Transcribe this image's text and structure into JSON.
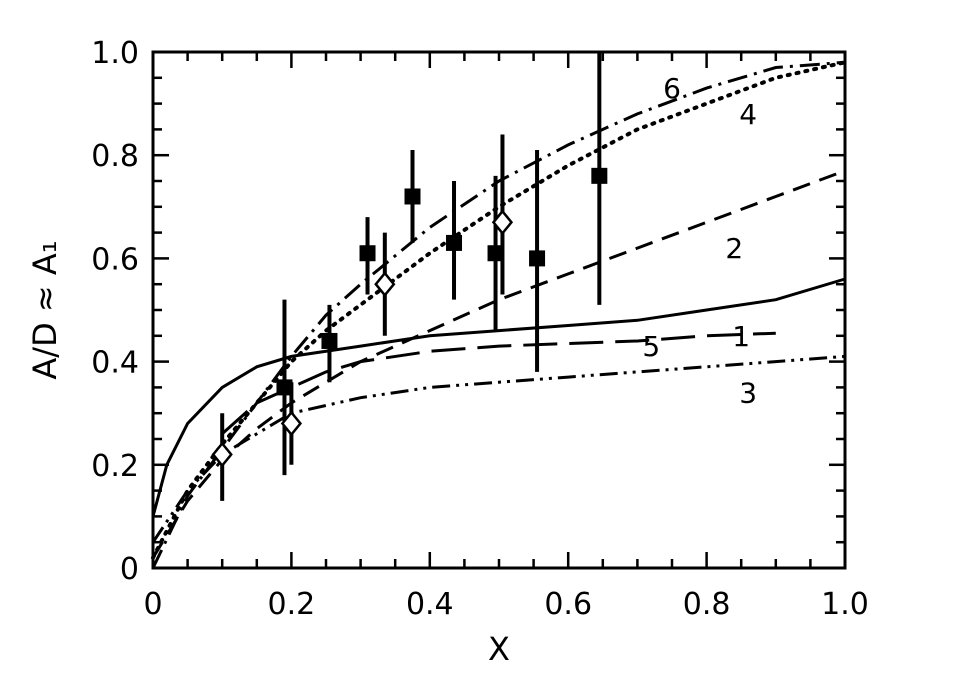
{
  "chart_data": {
    "type": "line",
    "title": "",
    "xlabel": "X",
    "ylabel": "A/D ≈ A₁",
    "xlim": [
      0,
      1.0
    ],
    "ylim": [
      0,
      1.0
    ],
    "grid": false,
    "x_ticks": [
      0,
      0.2,
      0.4,
      0.6,
      0.8,
      1.0
    ],
    "x_tick_labels": [
      "0",
      "0.2",
      "0.4",
      "0.6",
      "0.8",
      "1.0"
    ],
    "y_ticks": [
      0,
      0.2,
      0.4,
      0.6,
      0.8,
      1.0
    ],
    "y_tick_labels": [
      "0",
      "0.2",
      "0.4",
      "0.6",
      "0.8",
      "1.0"
    ],
    "curves": [
      {
        "id": "1",
        "label": "1",
        "style": "solid",
        "x": [
          0.0,
          0.02,
          0.05,
          0.1,
          0.15,
          0.2,
          0.3,
          0.4,
          0.5,
          0.6,
          0.7,
          0.8,
          0.9,
          1.0
        ],
        "y": [
          0.1,
          0.2,
          0.28,
          0.35,
          0.39,
          0.41,
          0.43,
          0.45,
          0.46,
          0.47,
          0.48,
          0.5,
          0.52,
          0.56
        ],
        "label_at": [
          0.85,
          0.45
        ]
      },
      {
        "id": "2",
        "label": "2",
        "style": "dashed",
        "x": [
          0.0,
          0.05,
          0.1,
          0.15,
          0.2,
          0.25,
          0.3,
          0.4,
          0.5,
          0.6,
          0.7,
          0.8,
          0.9,
          1.0
        ],
        "y": [
          0.02,
          0.13,
          0.21,
          0.27,
          0.32,
          0.36,
          0.4,
          0.46,
          0.52,
          0.57,
          0.62,
          0.67,
          0.72,
          0.77
        ],
        "label_at": [
          0.84,
          0.62
        ]
      },
      {
        "id": "3",
        "label": "3",
        "style": "dash-dot-dot",
        "x": [
          0.0,
          0.05,
          0.1,
          0.15,
          0.2,
          0.3,
          0.4,
          0.5,
          0.6,
          0.7,
          0.8,
          0.9,
          1.0
        ],
        "y": [
          0.05,
          0.15,
          0.22,
          0.26,
          0.3,
          0.33,
          0.35,
          0.36,
          0.37,
          0.38,
          0.39,
          0.4,
          0.41
        ],
        "label_at": [
          0.86,
          0.34
        ]
      },
      {
        "id": "4",
        "label": "4",
        "style": "dotted",
        "x": [
          0.0,
          0.05,
          0.1,
          0.15,
          0.2,
          0.25,
          0.3,
          0.4,
          0.5,
          0.6,
          0.7,
          0.8,
          0.9,
          1.0
        ],
        "y": [
          0.02,
          0.15,
          0.24,
          0.32,
          0.4,
          0.46,
          0.51,
          0.61,
          0.7,
          0.78,
          0.85,
          0.9,
          0.95,
          0.98
        ],
        "label_at": [
          0.86,
          0.88
        ]
      },
      {
        "id": "5",
        "label": "5",
        "style": "long-dash",
        "x": [
          0.1,
          0.15,
          0.2,
          0.25,
          0.3,
          0.4,
          0.5,
          0.6,
          0.7,
          0.8,
          0.9
        ],
        "y": [
          0.26,
          0.32,
          0.35,
          0.38,
          0.4,
          0.42,
          0.43,
          0.435,
          0.44,
          0.45,
          0.455
        ],
        "label_at": [
          0.72,
          0.43
        ]
      },
      {
        "id": "6",
        "label": "6",
        "style": "dash-dot",
        "x": [
          0.0,
          0.05,
          0.1,
          0.15,
          0.2,
          0.25,
          0.3,
          0.4,
          0.5,
          0.6,
          0.7,
          0.8,
          0.9,
          1.0
        ],
        "y": [
          0.0,
          0.14,
          0.23,
          0.32,
          0.41,
          0.49,
          0.55,
          0.66,
          0.75,
          0.82,
          0.88,
          0.93,
          0.97,
          0.98
        ],
        "label_at": [
          0.75,
          0.93
        ]
      }
    ],
    "datasets": [
      {
        "id": "filled-squares",
        "marker": "filled-square",
        "points": [
          {
            "x": 0.19,
            "y": 0.35,
            "ylow": 0.18,
            "yhigh": 0.52
          },
          {
            "x": 0.255,
            "y": 0.44,
            "ylow": 0.36,
            "yhigh": 0.51
          },
          {
            "x": 0.31,
            "y": 0.61,
            "ylow": 0.53,
            "yhigh": 0.68
          },
          {
            "x": 0.375,
            "y": 0.72,
            "ylow": 0.63,
            "yhigh": 0.81
          },
          {
            "x": 0.435,
            "y": 0.63,
            "ylow": 0.52,
            "yhigh": 0.75
          },
          {
            "x": 0.495,
            "y": 0.61,
            "ylow": 0.46,
            "yhigh": 0.76
          },
          {
            "x": 0.555,
            "y": 0.6,
            "ylow": 0.38,
            "yhigh": 0.81
          },
          {
            "x": 0.645,
            "y": 0.76,
            "ylow": 0.51,
            "yhigh": 1.0
          }
        ]
      },
      {
        "id": "open-diamonds",
        "marker": "open-diamond",
        "points": [
          {
            "x": 0.1,
            "y": 0.22,
            "ylow": 0.13,
            "yhigh": 0.3
          },
          {
            "x": 0.2,
            "y": 0.28,
            "ylow": 0.2,
            "yhigh": 0.36
          },
          {
            "x": 0.335,
            "y": 0.55,
            "ylow": 0.45,
            "yhigh": 0.65
          },
          {
            "x": 0.505,
            "y": 0.67,
            "ylow": 0.53,
            "yhigh": 0.84
          }
        ]
      }
    ]
  }
}
